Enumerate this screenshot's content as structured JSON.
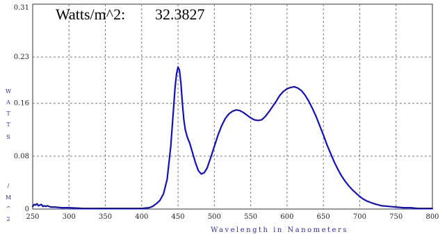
{
  "chart_data": {
    "type": "line",
    "title_label": "Watts/m^2:",
    "title_value": "32.3827",
    "xlabel": "Wavelength in Nanometers",
    "ylabel_chars": [
      "W",
      "A",
      "T",
      "T",
      "S",
      "/",
      "M",
      "^",
      "2"
    ],
    "xlim": [
      250,
      800
    ],
    "ylim": [
      0,
      0.31
    ],
    "x_ticks": [
      250,
      300,
      350,
      400,
      450,
      500,
      550,
      600,
      650,
      700,
      750,
      800
    ],
    "x_tick_labels": [
      "250",
      "300",
      "350",
      "400",
      "450",
      "500",
      "550",
      "600",
      "650",
      "700",
      "750",
      "800"
    ],
    "y_ticks": [
      0,
      0.08,
      0.16,
      0.23,
      0.31
    ],
    "y_tick_labels": [
      "0",
      "0.08",
      "0.16",
      "0.23",
      "0.31"
    ],
    "grid": true,
    "series_color": "#1010c0",
    "series": [
      {
        "name": "",
        "x": [
          250,
          252,
          254,
          256,
          258,
          260,
          262,
          264,
          266,
          268,
          270,
          275,
          280,
          290,
          300,
          320,
          340,
          360,
          380,
          400,
          410,
          415,
          420,
          425,
          430,
          435,
          440,
          443,
          446,
          448,
          450,
          452,
          454,
          456,
          458,
          460,
          463,
          466,
          470,
          474,
          478,
          482,
          486,
          490,
          495,
          500,
          505,
          510,
          515,
          520,
          525,
          530,
          535,
          540,
          545,
          550,
          555,
          560,
          565,
          570,
          575,
          580,
          585,
          590,
          595,
          600,
          605,
          610,
          615,
          620,
          625,
          630,
          635,
          640,
          645,
          650,
          655,
          660,
          665,
          670,
          675,
          680,
          685,
          690,
          695,
          700,
          705,
          710,
          715,
          720,
          730,
          740,
          750,
          760,
          770,
          780,
          790,
          800
        ],
        "y": [
          0.004,
          0.007,
          0.006,
          0.008,
          0.005,
          0.006,
          0.007,
          0.004,
          0.005,
          0.004,
          0.005,
          0.003,
          0.003,
          0.002,
          0.002,
          0.001,
          0.001,
          0.001,
          0.001,
          0.001,
          0.002,
          0.004,
          0.008,
          0.013,
          0.023,
          0.045,
          0.095,
          0.14,
          0.185,
          0.205,
          0.215,
          0.21,
          0.19,
          0.16,
          0.135,
          0.12,
          0.108,
          0.1,
          0.085,
          0.07,
          0.058,
          0.053,
          0.055,
          0.062,
          0.078,
          0.095,
          0.112,
          0.126,
          0.137,
          0.144,
          0.148,
          0.15,
          0.149,
          0.146,
          0.142,
          0.138,
          0.135,
          0.134,
          0.135,
          0.14,
          0.147,
          0.155,
          0.163,
          0.172,
          0.178,
          0.182,
          0.184,
          0.185,
          0.183,
          0.179,
          0.172,
          0.163,
          0.152,
          0.14,
          0.126,
          0.112,
          0.097,
          0.084,
          0.071,
          0.06,
          0.05,
          0.042,
          0.035,
          0.029,
          0.024,
          0.019,
          0.015,
          0.012,
          0.01,
          0.008,
          0.005,
          0.004,
          0.003,
          0.002,
          0.002,
          0.001,
          0.001,
          0.001
        ]
      }
    ]
  }
}
